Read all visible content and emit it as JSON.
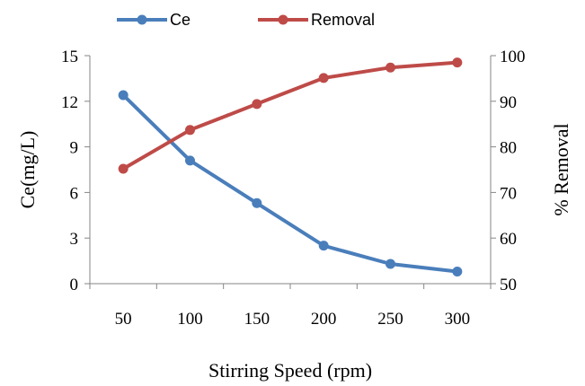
{
  "chart_data": {
    "type": "line",
    "xlabel": "Stirring Speed (rpm)",
    "ylabel_left": "Ce(mg/L)",
    "ylabel_right": "% Removal",
    "x": [
      50,
      100,
      150,
      200,
      250,
      300
    ],
    "ylim_left": [
      0,
      15
    ],
    "yticks_left": [
      0,
      3,
      6,
      9,
      12,
      15
    ],
    "ylim_right": [
      50,
      100
    ],
    "yticks_right": [
      50,
      60,
      70,
      80,
      90,
      100
    ],
    "grid": false,
    "legend_position": "top",
    "series": [
      {
        "name": "Ce",
        "axis": "left",
        "color": "#4a7ebb",
        "values": [
          12.4,
          8.1,
          5.3,
          2.5,
          1.3,
          0.8
        ]
      },
      {
        "name": "Removal",
        "axis": "right",
        "color": "#be4b48",
        "values": [
          75.2,
          83.7,
          89.4,
          95.1,
          97.4,
          98.5
        ]
      }
    ]
  }
}
